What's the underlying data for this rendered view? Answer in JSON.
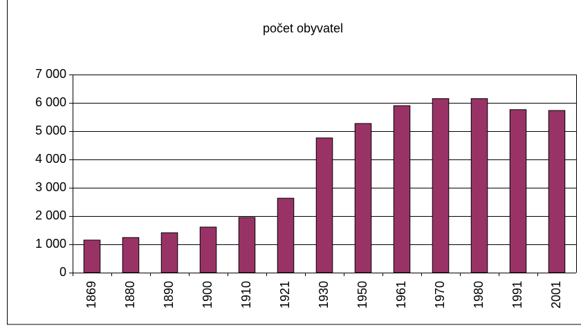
{
  "chart_data": {
    "type": "bar",
    "title": "počet obyvatel",
    "categories": [
      "1869",
      "1880",
      "1890",
      "1900",
      "1910",
      "1921",
      "1930",
      "1950",
      "1961",
      "1970",
      "1980",
      "1991",
      "2001"
    ],
    "values": [
      1150,
      1240,
      1410,
      1610,
      1950,
      2630,
      4760,
      5270,
      5900,
      6150,
      6150,
      5760,
      5730
    ],
    "color": "#993366",
    "ylim": [
      0,
      7000
    ],
    "yticks": [
      0,
      {
        "value": 1000,
        "label": "1 000"
      },
      {
        "value": 2000,
        "label": "2 000"
      },
      {
        "value": 3000,
        "label": "3 000"
      },
      {
        "value": 4000,
        "label": "4 000"
      },
      {
        "value": 5000,
        "label": "5 000"
      },
      {
        "value": 6000,
        "label": "6 000"
      },
      {
        "value": 7000,
        "label": "7 000"
      }
    ],
    "grid": true
  }
}
